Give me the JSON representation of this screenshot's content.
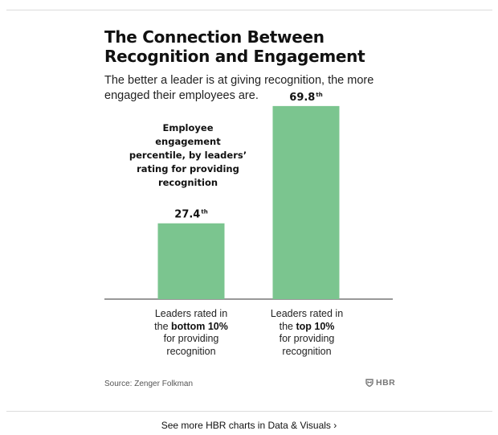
{
  "header": {
    "title": "The Connection Between Recognition and Engagement",
    "subtitle": "The better a leader is at giving recognition, the more engaged their employees are."
  },
  "chart_data": {
    "type": "bar",
    "title": "The Connection Between Recognition and Engagement",
    "ylabel": "Employee engagement percentile, by leaders’ rating for providing recognition",
    "xlabel": "",
    "ylim": [
      0,
      100
    ],
    "grid": false,
    "legend": "none",
    "bar_color": "#7bc58f",
    "categories": [
      "Leaders rated in the bottom 10% for providing recognition",
      "Leaders rated in the top 10% for providing recognition"
    ],
    "values": [
      27.4,
      69.8
    ],
    "value_labels": [
      {
        "number": "27.4",
        "suffix": "th"
      },
      {
        "number": "69.8",
        "suffix": "th"
      }
    ],
    "category_parts": [
      {
        "line1": "Leaders rated in",
        "pre": "the",
        "bold": "bottom 10%",
        "line3": "for providing",
        "line4": "recognition"
      },
      {
        "line1": "Leaders rated in",
        "pre": "the",
        "bold": "top 10%",
        "line3": "for providing",
        "line4": "recognition"
      }
    ]
  },
  "source": "Source: Zenger Folkman",
  "brand": {
    "name": "HBR",
    "icon": "shield-icon"
  },
  "footer": {
    "text": "See more HBR charts in Data & Visuals ›"
  }
}
